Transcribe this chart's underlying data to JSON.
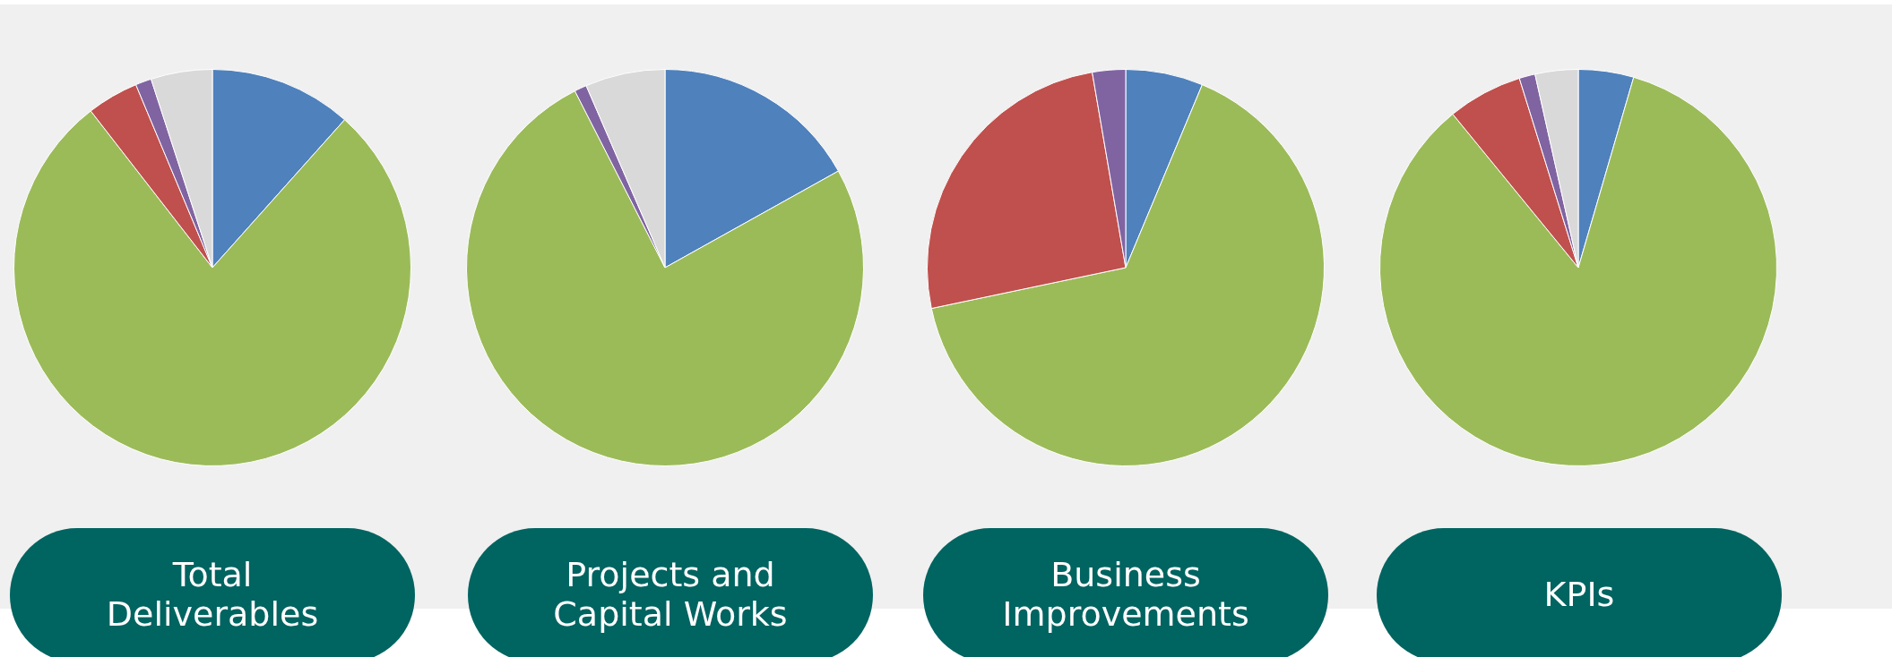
{
  "chart_data": [
    {
      "type": "pie",
      "title": "Total Deliverables",
      "categories": [
        null,
        null,
        null,
        null,
        null
      ],
      "values": [
        11.6,
        77.9,
        4.2,
        1.3,
        5.0
      ],
      "colors": [
        "#4f81bd",
        "#9bbb59",
        "#c0504d",
        "#8064a2",
        "#d9d9d9"
      ]
    },
    {
      "type": "pie",
      "title": "Projects and Capital Works",
      "categories": [
        null,
        null,
        null,
        null,
        null
      ],
      "values": [
        16.9,
        75.6,
        0,
        1.0,
        6.5
      ],
      "colors": [
        "#4f81bd",
        "#9bbb59",
        "#c0504d",
        "#8064a2",
        "#d9d9d9"
      ]
    },
    {
      "type": "pie",
      "title": "Business Improvements",
      "categories": [
        null,
        null,
        null,
        null,
        null
      ],
      "values": [
        6.3,
        65.4,
        25.6,
        2.7,
        0
      ],
      "colors": [
        "#4f81bd",
        "#9bbb59",
        "#c0504d",
        "#8064a2",
        "#d9d9d9"
      ]
    },
    {
      "type": "pie",
      "title": "KPIs",
      "categories": [
        null,
        null,
        null,
        null,
        null
      ],
      "values": [
        4.5,
        84.6,
        6.1,
        1.3,
        3.5
      ],
      "colors": [
        "#4f81bd",
        "#9bbb59",
        "#c0504d",
        "#8064a2",
        "#d9d9d9"
      ]
    }
  ]
}
